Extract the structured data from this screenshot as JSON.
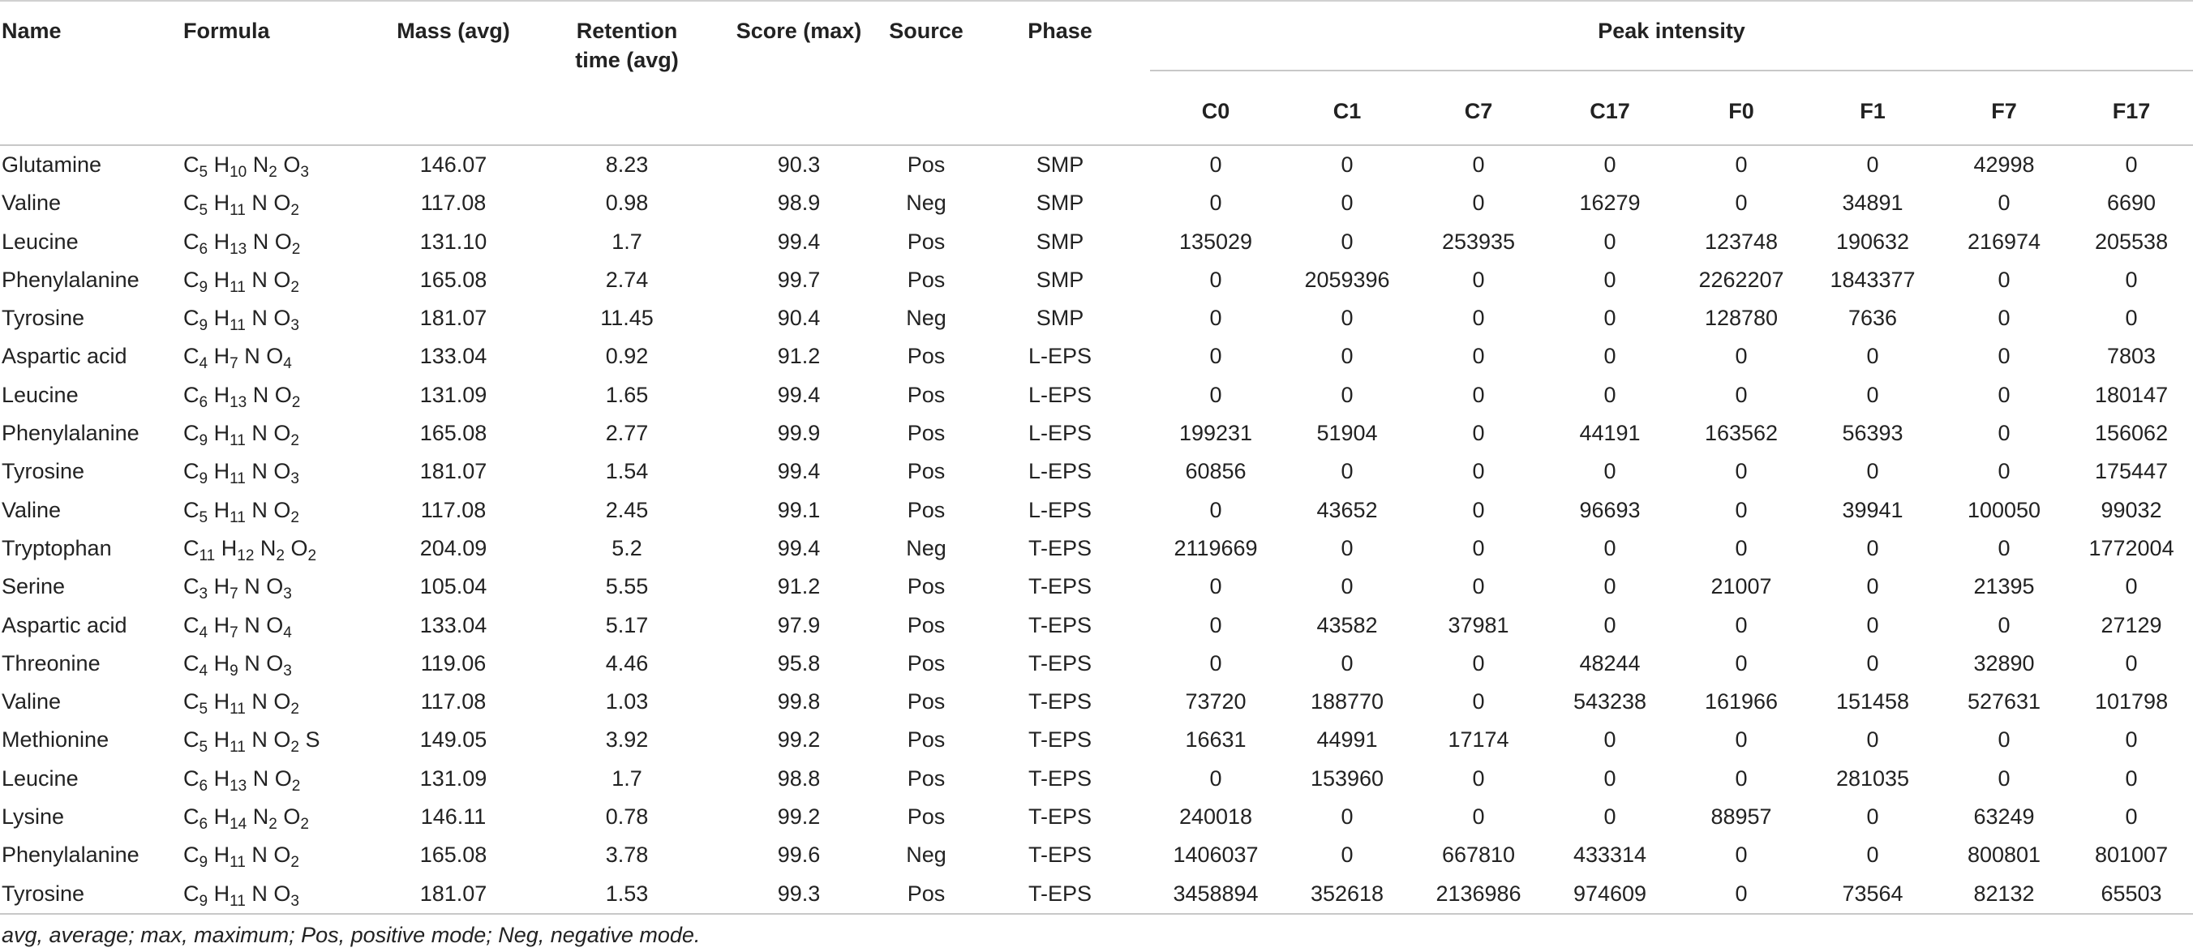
{
  "headers": {
    "name": "Name",
    "formula": "Formula",
    "mass": "Mass (avg)",
    "retention_line1": "Retention",
    "retention_line2": "time (avg)",
    "score": "Score (max)",
    "source": "Source",
    "phase": "Phase",
    "peak_intensity": "Peak intensity",
    "samples": [
      "C0",
      "C1",
      "C7",
      "C17",
      "F0",
      "F1",
      "F7",
      "F17"
    ]
  },
  "rows": [
    {
      "name": "Glutamine",
      "formula": [
        [
          "C",
          "5"
        ],
        [
          "H",
          "10"
        ],
        [
          "N",
          "2"
        ],
        [
          "O",
          "3"
        ]
      ],
      "mass": "146.07",
      "rt": "8.23",
      "score": "90.3",
      "source": "Pos",
      "phase": "SMP",
      "peaks": [
        "0",
        "0",
        "0",
        "0",
        "0",
        "0",
        "42998",
        "0"
      ]
    },
    {
      "name": "Valine",
      "formula": [
        [
          "C",
          "5"
        ],
        [
          "H",
          "11"
        ],
        [
          "N",
          ""
        ],
        [
          "O",
          "2"
        ]
      ],
      "mass": "117.08",
      "rt": "0.98",
      "score": "98.9",
      "source": "Neg",
      "phase": "SMP",
      "peaks": [
        "0",
        "0",
        "0",
        "16279",
        "0",
        "34891",
        "0",
        "6690"
      ]
    },
    {
      "name": "Leucine",
      "formula": [
        [
          "C",
          "6"
        ],
        [
          "H",
          "13"
        ],
        [
          "N",
          ""
        ],
        [
          "O",
          "2"
        ]
      ],
      "mass": "131.10",
      "rt": "1.7",
      "score": "99.4",
      "source": "Pos",
      "phase": "SMP",
      "peaks": [
        "135029",
        "0",
        "253935",
        "0",
        "123748",
        "190632",
        "216974",
        "205538"
      ]
    },
    {
      "name": "Phenylalanine",
      "formula": [
        [
          "C",
          "9"
        ],
        [
          "H",
          "11"
        ],
        [
          "N",
          ""
        ],
        [
          "O",
          "2"
        ]
      ],
      "mass": "165.08",
      "rt": "2.74",
      "score": "99.7",
      "source": "Pos",
      "phase": "SMP",
      "peaks": [
        "0",
        "2059396",
        "0",
        "0",
        "2262207",
        "1843377",
        "0",
        "0"
      ]
    },
    {
      "name": "Tyrosine",
      "formula": [
        [
          "C",
          "9"
        ],
        [
          "H",
          "11"
        ],
        [
          "N",
          ""
        ],
        [
          "O",
          "3"
        ]
      ],
      "mass": "181.07",
      "rt": "11.45",
      "score": "90.4",
      "source": "Neg",
      "phase": "SMP",
      "peaks": [
        "0",
        "0",
        "0",
        "0",
        "128780",
        "7636",
        "0",
        "0"
      ]
    },
    {
      "name": "Aspartic acid",
      "formula": [
        [
          "C",
          "4"
        ],
        [
          "H",
          "7"
        ],
        [
          "N",
          ""
        ],
        [
          "O",
          "4"
        ]
      ],
      "mass": "133.04",
      "rt": "0.92",
      "score": "91.2",
      "source": "Pos",
      "phase": "L-EPS",
      "peaks": [
        "0",
        "0",
        "0",
        "0",
        "0",
        "0",
        "0",
        "7803"
      ]
    },
    {
      "name": "Leucine",
      "formula": [
        [
          "C",
          "6"
        ],
        [
          "H",
          "13"
        ],
        [
          "N",
          ""
        ],
        [
          "O",
          "2"
        ]
      ],
      "mass": "131.09",
      "rt": "1.65",
      "score": "99.4",
      "source": "Pos",
      "phase": "L-EPS",
      "peaks": [
        "0",
        "0",
        "0",
        "0",
        "0",
        "0",
        "0",
        "180147"
      ]
    },
    {
      "name": "Phenylalanine",
      "formula": [
        [
          "C",
          "9"
        ],
        [
          "H",
          "11"
        ],
        [
          "N",
          ""
        ],
        [
          "O",
          "2"
        ]
      ],
      "mass": "165.08",
      "rt": "2.77",
      "score": "99.9",
      "source": "Pos",
      "phase": "L-EPS",
      "peaks": [
        "199231",
        "51904",
        "0",
        "44191",
        "163562",
        "56393",
        "0",
        "156062"
      ]
    },
    {
      "name": "Tyrosine",
      "formula": [
        [
          "C",
          "9"
        ],
        [
          "H",
          "11"
        ],
        [
          "N",
          ""
        ],
        [
          "O",
          "3"
        ]
      ],
      "mass": "181.07",
      "rt": "1.54",
      "score": "99.4",
      "source": "Pos",
      "phase": "L-EPS",
      "peaks": [
        "60856",
        "0",
        "0",
        "0",
        "0",
        "0",
        "0",
        "175447"
      ]
    },
    {
      "name": "Valine",
      "formula": [
        [
          "C",
          "5"
        ],
        [
          "H",
          "11"
        ],
        [
          "N",
          ""
        ],
        [
          "O",
          "2"
        ]
      ],
      "mass": "117.08",
      "rt": "2.45",
      "score": "99.1",
      "source": "Pos",
      "phase": "L-EPS",
      "peaks": [
        "0",
        "43652",
        "0",
        "96693",
        "0",
        "39941",
        "100050",
        "99032"
      ]
    },
    {
      "name": "Tryptophan",
      "formula": [
        [
          "C",
          "11"
        ],
        [
          "H",
          "12"
        ],
        [
          "N",
          "2"
        ],
        [
          "O",
          "2"
        ]
      ],
      "mass": "204.09",
      "rt": "5.2",
      "score": "99.4",
      "source": "Neg",
      "phase": "T-EPS",
      "peaks": [
        "2119669",
        "0",
        "0",
        "0",
        "0",
        "0",
        "0",
        "1772004"
      ]
    },
    {
      "name": "Serine",
      "formula": [
        [
          "C",
          "3"
        ],
        [
          "H",
          "7"
        ],
        [
          "N",
          ""
        ],
        [
          "O",
          "3"
        ]
      ],
      "mass": "105.04",
      "rt": "5.55",
      "score": "91.2",
      "source": "Pos",
      "phase": "T-EPS",
      "peaks": [
        "0",
        "0",
        "0",
        "0",
        "21007",
        "0",
        "21395",
        "0"
      ]
    },
    {
      "name": "Aspartic acid",
      "formula": [
        [
          "C",
          "4"
        ],
        [
          "H",
          "7"
        ],
        [
          "N",
          ""
        ],
        [
          "O",
          "4"
        ]
      ],
      "mass": "133.04",
      "rt": "5.17",
      "score": "97.9",
      "source": "Pos",
      "phase": "T-EPS",
      "peaks": [
        "0",
        "43582",
        "37981",
        "0",
        "0",
        "0",
        "0",
        "27129"
      ]
    },
    {
      "name": "Threonine",
      "formula": [
        [
          "C",
          "4"
        ],
        [
          "H",
          "9"
        ],
        [
          "N",
          ""
        ],
        [
          "O",
          "3"
        ]
      ],
      "mass": "119.06",
      "rt": "4.46",
      "score": "95.8",
      "source": "Pos",
      "phase": "T-EPS",
      "peaks": [
        "0",
        "0",
        "0",
        "48244",
        "0",
        "0",
        "32890",
        "0"
      ]
    },
    {
      "name": "Valine",
      "formula": [
        [
          "C",
          "5"
        ],
        [
          "H",
          "11"
        ],
        [
          "N",
          ""
        ],
        [
          "O",
          "2"
        ]
      ],
      "mass": "117.08",
      "rt": "1.03",
      "score": "99.8",
      "source": "Pos",
      "phase": "T-EPS",
      "peaks": [
        "73720",
        "188770",
        "0",
        "543238",
        "161966",
        "151458",
        "527631",
        "101798"
      ]
    },
    {
      "name": "Methionine",
      "formula": [
        [
          "C",
          "5"
        ],
        [
          "H",
          "11"
        ],
        [
          "N",
          ""
        ],
        [
          "O",
          "2"
        ],
        [
          "S",
          ""
        ]
      ],
      "mass": "149.05",
      "rt": "3.92",
      "score": "99.2",
      "source": "Pos",
      "phase": "T-EPS",
      "peaks": [
        "16631",
        "44991",
        "17174",
        "0",
        "0",
        "0",
        "0",
        "0"
      ]
    },
    {
      "name": "Leucine",
      "formula": [
        [
          "C",
          "6"
        ],
        [
          "H",
          "13"
        ],
        [
          "N",
          ""
        ],
        [
          "O",
          "2"
        ]
      ],
      "mass": "131.09",
      "rt": "1.7",
      "score": "98.8",
      "source": "Pos",
      "phase": "T-EPS",
      "peaks": [
        "0",
        "153960",
        "0",
        "0",
        "0",
        "281035",
        "0",
        "0"
      ]
    },
    {
      "name": "Lysine",
      "formula": [
        [
          "C",
          "6"
        ],
        [
          "H",
          "14"
        ],
        [
          "N",
          "2"
        ],
        [
          "O",
          "2"
        ]
      ],
      "mass": "146.11",
      "rt": "0.78",
      "score": "99.2",
      "source": "Pos",
      "phase": "T-EPS",
      "peaks": [
        "240018",
        "0",
        "0",
        "0",
        "88957",
        "0",
        "63249",
        "0"
      ]
    },
    {
      "name": "Phenylalanine",
      "formula": [
        [
          "C",
          "9"
        ],
        [
          "H",
          "11"
        ],
        [
          "N",
          ""
        ],
        [
          "O",
          "2"
        ]
      ],
      "mass": "165.08",
      "rt": "3.78",
      "score": "99.6",
      "source": "Neg",
      "phase": "T-EPS",
      "peaks": [
        "1406037",
        "0",
        "667810",
        "433314",
        "0",
        "0",
        "800801",
        "801007"
      ]
    },
    {
      "name": "Tyrosine",
      "formula": [
        [
          "C",
          "9"
        ],
        [
          "H",
          "11"
        ],
        [
          "N",
          ""
        ],
        [
          "O",
          "3"
        ]
      ],
      "mass": "181.07",
      "rt": "1.53",
      "score": "99.3",
      "source": "Pos",
      "phase": "T-EPS",
      "peaks": [
        "3458894",
        "352618",
        "2136986",
        "974609",
        "0",
        "73564",
        "82132",
        "65503"
      ]
    }
  ],
  "footnote": "avg, average; max, maximum; Pos, positive mode; Neg, negative mode."
}
